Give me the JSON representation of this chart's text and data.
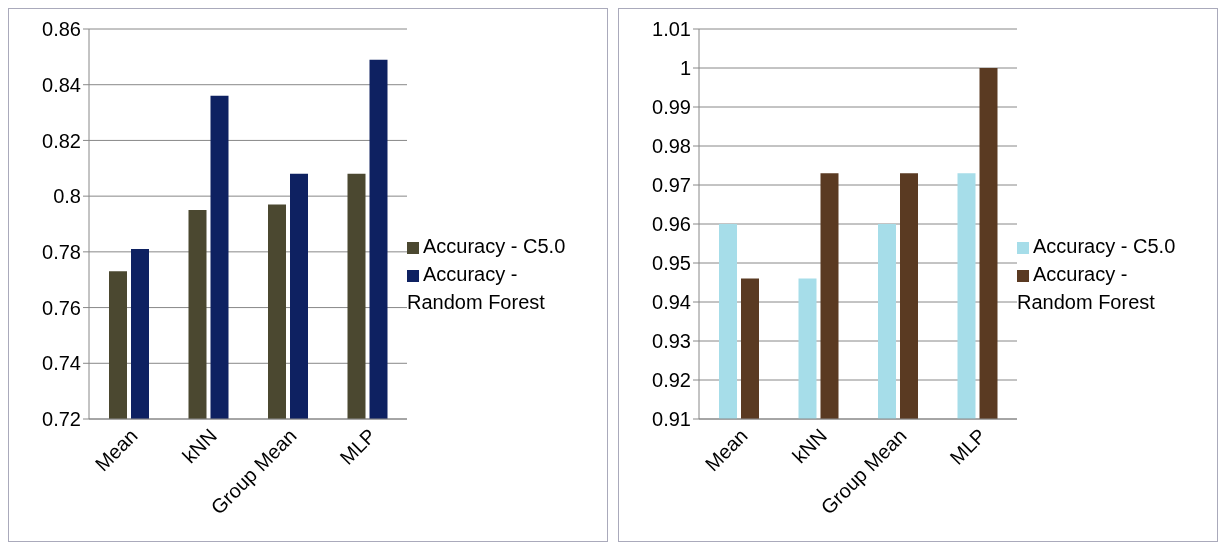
{
  "chart_data": [
    {
      "type": "bar",
      "categories": [
        "Mean",
        "kNN",
        "Group Mean",
        "MLP"
      ],
      "series": [
        {
          "name": "Accuracy - C5.0",
          "color": "#4b4830",
          "values": [
            0.773,
            0.795,
            0.797,
            0.808
          ]
        },
        {
          "name": "Accuracy - Random Forest",
          "color": "#0e2161",
          "values": [
            0.781,
            0.836,
            0.808,
            0.849
          ]
        }
      ],
      "ylim": [
        0.72,
        0.86
      ],
      "yticks": [
        0.72,
        0.74,
        0.76,
        0.78,
        0.8,
        0.82,
        0.84,
        0.86
      ],
      "grid": "y",
      "legend": "right"
    },
    {
      "type": "bar",
      "categories": [
        "Mean",
        "kNN",
        "Group Mean",
        "MLP"
      ],
      "series": [
        {
          "name": "Accuracy - C5.0",
          "color": "#a6dde9",
          "values": [
            0.96,
            0.946,
            0.96,
            0.973
          ]
        },
        {
          "name": "Accuracy - Random Forest",
          "color": "#5a3a22",
          "values": [
            0.946,
            0.973,
            0.973,
            1.0
          ]
        }
      ],
      "ylim": [
        0.91,
        1.01
      ],
      "yticks": [
        0.91,
        0.92,
        0.93,
        0.94,
        0.95,
        0.96,
        0.97,
        0.98,
        0.99,
        1,
        1.01
      ],
      "grid": "y",
      "legend": "right"
    }
  ]
}
